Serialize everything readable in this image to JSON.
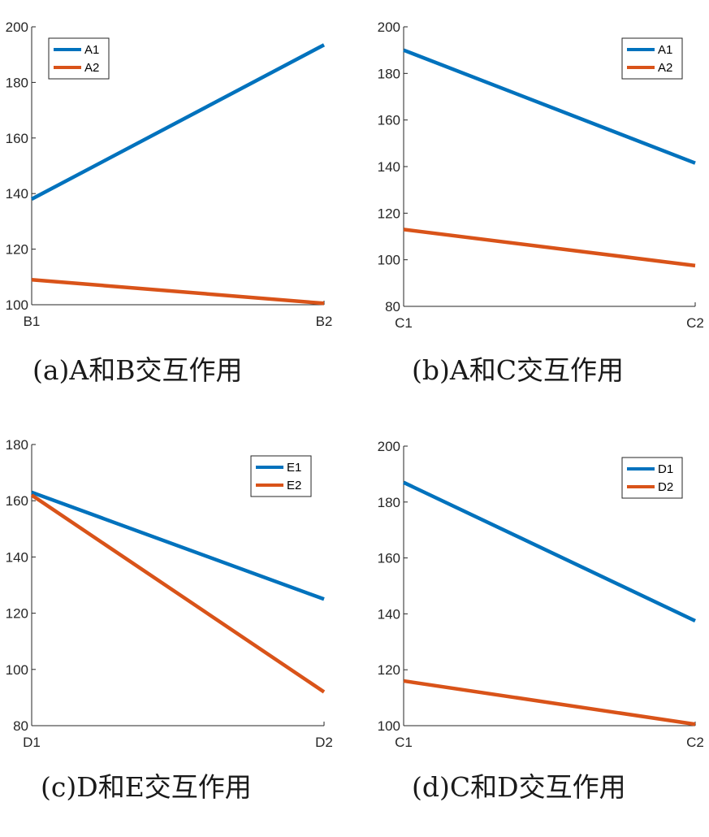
{
  "chart_data": [
    {
      "type": "line",
      "caption": "(a)A和B交互作用",
      "categories": [
        "B1",
        "B2"
      ],
      "ylim": [
        100,
        200
      ],
      "yticks": [
        100,
        120,
        140,
        160,
        180,
        200
      ],
      "legend_position": "top-left",
      "series": [
        {
          "name": "A1",
          "values": [
            138,
            193.5
          ],
          "color": "#0072BD"
        },
        {
          "name": "A2",
          "values": [
            109,
            100.5
          ],
          "color": "#D95319"
        }
      ]
    },
    {
      "type": "line",
      "caption": "(b)A和C交互作用",
      "categories": [
        "C1",
        "C2"
      ],
      "ylim": [
        80,
        200
      ],
      "yticks": [
        80,
        100,
        120,
        140,
        160,
        180,
        200
      ],
      "legend_position": "top-right",
      "series": [
        {
          "name": "A1",
          "values": [
            190,
            141.5
          ],
          "color": "#0072BD"
        },
        {
          "name": "A2",
          "values": [
            113,
            97.5
          ],
          "color": "#D95319"
        }
      ]
    },
    {
      "type": "line",
      "caption": "(c)D和E交互作用",
      "categories": [
        "D1",
        "D2"
      ],
      "ylim": [
        80,
        180
      ],
      "yticks": [
        80,
        100,
        120,
        140,
        160,
        180
      ],
      "legend_position": "top-right",
      "series": [
        {
          "name": "E1",
          "values": [
            163,
            125
          ],
          "color": "#0072BD"
        },
        {
          "name": "E2",
          "values": [
            162,
            92
          ],
          "color": "#D95319"
        }
      ]
    },
    {
      "type": "line",
      "caption": "(d)C和D交互作用",
      "categories": [
        "C1",
        "C2"
      ],
      "ylim": [
        100,
        200
      ],
      "yticks": [
        100,
        120,
        140,
        160,
        180,
        200
      ],
      "legend_position": "top-right",
      "series": [
        {
          "name": "D1",
          "values": [
            187,
            137.5
          ],
          "color": "#0072BD"
        },
        {
          "name": "D2",
          "values": [
            116,
            100.5
          ],
          "color": "#D95319"
        }
      ]
    }
  ]
}
